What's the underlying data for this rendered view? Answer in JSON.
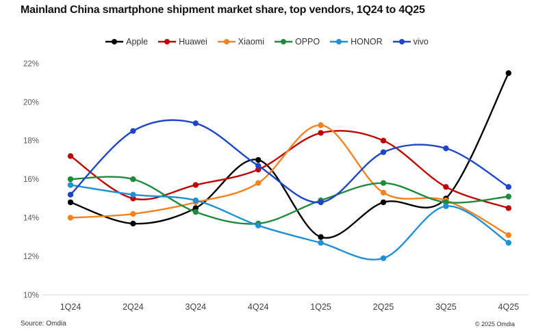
{
  "title": "Mainland China smartphone shipment market share, top vendors, 1Q24 to 4Q25",
  "footer": {
    "source": "Source: Omdia",
    "copyright": "© 2025 Omdia"
  },
  "chart_data": {
    "type": "line",
    "title": "Mainland China smartphone shipment market share, top vendors, 1Q24 to 4Q25",
    "categories": [
      "1Q24",
      "2Q24",
      "3Q24",
      "4Q24",
      "1Q25",
      "2Q25",
      "3Q25",
      "4Q25"
    ],
    "series": [
      {
        "name": "Apple",
        "color": "#000000",
        "values": [
          14.8,
          13.7,
          14.5,
          17.0,
          13.0,
          14.8,
          15.0,
          21.5
        ]
      },
      {
        "name": "Huawei",
        "color": "#c00000",
        "values": [
          17.2,
          15.0,
          15.7,
          16.5,
          18.4,
          18.0,
          15.6,
          14.5
        ]
      },
      {
        "name": "Xiaomi",
        "color": "#f5821f",
        "values": [
          14.0,
          14.2,
          14.8,
          15.8,
          18.8,
          15.3,
          14.9,
          13.1
        ]
      },
      {
        "name": "OPPO",
        "color": "#1e8a3b",
        "values": [
          16.0,
          16.0,
          14.3,
          13.7,
          14.9,
          15.8,
          14.8,
          15.1
        ]
      },
      {
        "name": "HONOR",
        "color": "#1f8fd6",
        "values": [
          15.7,
          15.2,
          14.9,
          13.6,
          12.7,
          11.9,
          14.6,
          12.7
        ]
      },
      {
        "name": "vivo",
        "color": "#1e44c9",
        "values": [
          15.2,
          18.5,
          18.9,
          16.7,
          14.8,
          17.4,
          17.6,
          15.6
        ]
      }
    ],
    "xlabel": "",
    "ylabel": "",
    "ylim": [
      10,
      22
    ],
    "y_ticks": [
      10,
      12,
      14,
      16,
      18,
      20,
      22
    ],
    "tick_suffix": "%",
    "grid": false,
    "legend_position": "top",
    "line_style": "smooth",
    "marker": "circle",
    "axis_line_color": "#d8d8d8"
  }
}
